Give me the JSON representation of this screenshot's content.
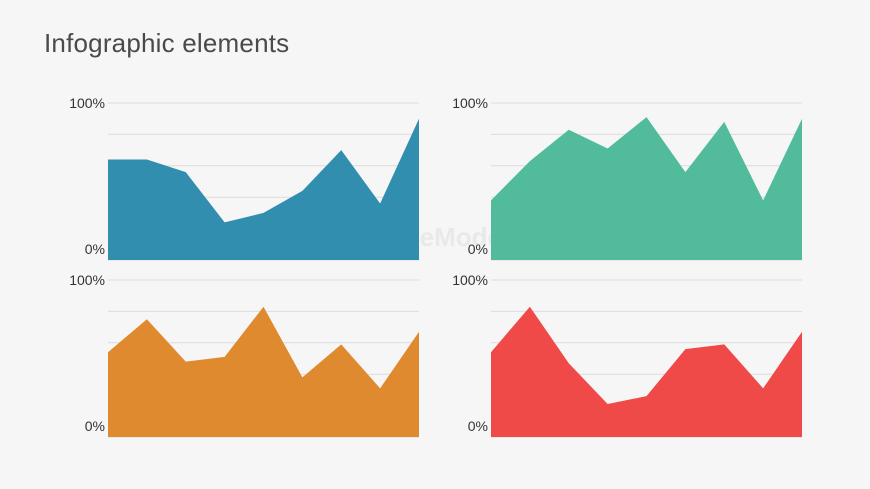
{
  "page": {
    "title": "Infographic elements"
  },
  "watermark": {
    "text": "SlideModel"
  },
  "chart_data": [
    {
      "type": "area",
      "color": "#318eaf",
      "ylim": [
        0,
        100
      ],
      "y_ticks": [
        "100%",
        "0%"
      ],
      "grid": true,
      "x": [
        0,
        1,
        2,
        3,
        4,
        5,
        6,
        7,
        8
      ],
      "values": [
        64,
        64,
        56,
        24,
        30,
        44,
        70,
        36,
        90
      ]
    },
    {
      "type": "area",
      "color": "#51bb9c",
      "ylim": [
        0,
        100
      ],
      "y_ticks": [
        "100%",
        "0%"
      ],
      "grid": true,
      "x": [
        0,
        1,
        2,
        3,
        4,
        5,
        6,
        7,
        8
      ],
      "values": [
        38,
        63,
        83,
        71,
        91,
        56,
        88,
        38,
        90
      ]
    },
    {
      "type": "area",
      "color": "#e08a2f",
      "ylim": [
        0,
        100
      ],
      "y_ticks": [
        "100%",
        "0%"
      ],
      "grid": true,
      "x": [
        0,
        1,
        2,
        3,
        4,
        5,
        6,
        7,
        8
      ],
      "values": [
        54,
        75,
        48,
        51,
        83,
        38,
        59,
        31,
        67
      ]
    },
    {
      "type": "area",
      "color": "#ef4a48",
      "ylim": [
        0,
        100
      ],
      "y_ticks": [
        "100%",
        "0%"
      ],
      "grid": true,
      "x": [
        0,
        1,
        2,
        3,
        4,
        5,
        6,
        7,
        8
      ],
      "values": [
        54,
        83,
        47,
        21,
        26,
        56,
        59,
        31,
        67
      ]
    }
  ]
}
